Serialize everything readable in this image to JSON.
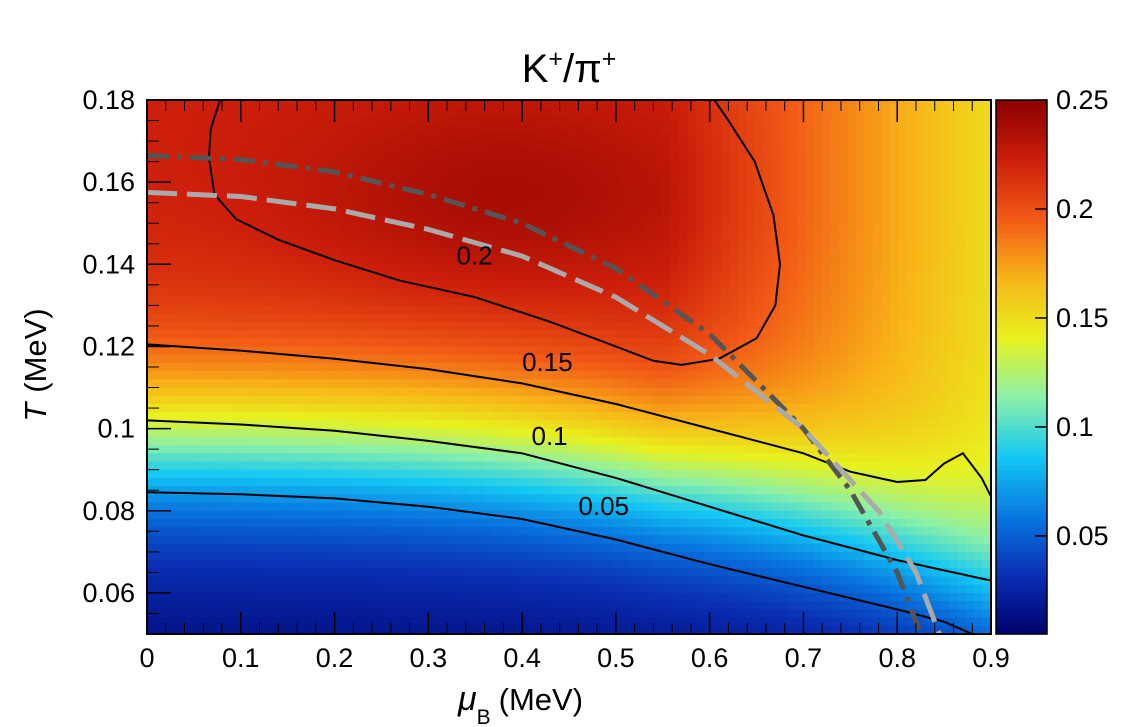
{
  "chart_data": {
    "type": "heatmap",
    "title": {
      "base": "K",
      "sup1": "+",
      "sep": "/π",
      "sup2": "+"
    },
    "xlabel": {
      "symbol": "μ",
      "sub": "B",
      "unit": "(MeV)"
    },
    "ylabel": {
      "symbol": "T",
      "unit": "(MeV)"
    },
    "xlim": [
      0,
      0.9
    ],
    "ylim": [
      0.05,
      0.18
    ],
    "zlim": [
      0.005,
      0.25
    ],
    "x_ticks": [
      {
        "v": 0,
        "label": "0"
      },
      {
        "v": 0.1,
        "label": "0.1"
      },
      {
        "v": 0.2,
        "label": "0.2"
      },
      {
        "v": 0.3,
        "label": "0.3"
      },
      {
        "v": 0.4,
        "label": "0.4"
      },
      {
        "v": 0.5,
        "label": "0.5"
      },
      {
        "v": 0.6,
        "label": "0.6"
      },
      {
        "v": 0.7,
        "label": "0.7"
      },
      {
        "v": 0.8,
        "label": "0.8"
      },
      {
        "v": 0.9,
        "label": "0.9"
      }
    ],
    "y_ticks": [
      {
        "v": 0.06,
        "label": "0.06"
      },
      {
        "v": 0.08,
        "label": "0.08"
      },
      {
        "v": 0.1,
        "label": "0.1"
      },
      {
        "v": 0.12,
        "label": "0.12"
      },
      {
        "v": 0.14,
        "label": "0.14"
      },
      {
        "v": 0.16,
        "label": "0.16"
      },
      {
        "v": 0.18,
        "label": "0.18"
      }
    ],
    "z_ticks": [
      {
        "v": 0.05,
        "label": "0.05"
      },
      {
        "v": 0.1,
        "label": "0.1"
      },
      {
        "v": 0.15,
        "label": "0.15"
      },
      {
        "v": 0.2,
        "label": "0.2"
      },
      {
        "v": 0.25,
        "label": "0.25"
      }
    ],
    "colormap": [
      "#00006e",
      "#0a2fb4",
      "#0878e0",
      "#14c8f4",
      "#8cf0a8",
      "#e8f21e",
      "#f8b418",
      "#f25a16",
      "#cc1e0a",
      "#8c0000"
    ],
    "contours": [
      {
        "level": 0.2,
        "label": "0.2",
        "label_at": [
          0.33,
          0.14
        ],
        "points": [
          [
            0.078,
            0.18
          ],
          [
            0.068,
            0.173
          ],
          [
            0.066,
            0.166
          ],
          [
            0.072,
            0.157
          ],
          [
            0.095,
            0.151
          ],
          [
            0.14,
            0.146
          ],
          [
            0.2,
            0.141
          ],
          [
            0.27,
            0.136
          ],
          [
            0.35,
            0.132
          ],
          [
            0.43,
            0.126
          ],
          [
            0.5,
            0.12
          ],
          [
            0.54,
            0.1165
          ],
          [
            0.57,
            0.1155
          ],
          [
            0.61,
            0.117
          ],
          [
            0.65,
            0.122
          ],
          [
            0.67,
            0.13
          ],
          [
            0.675,
            0.14
          ],
          [
            0.668,
            0.152
          ],
          [
            0.648,
            0.165
          ],
          [
            0.62,
            0.175
          ],
          [
            0.605,
            0.18
          ]
        ]
      },
      {
        "level": 0.15,
        "label": "0.15",
        "label_at": [
          0.4,
          0.114
        ],
        "points": [
          [
            0,
            0.1205
          ],
          [
            0.1,
            0.119
          ],
          [
            0.2,
            0.117
          ],
          [
            0.3,
            0.1145
          ],
          [
            0.4,
            0.111
          ],
          [
            0.5,
            0.106
          ],
          [
            0.6,
            0.1
          ],
          [
            0.7,
            0.094
          ],
          [
            0.75,
            0.0895
          ],
          [
            0.8,
            0.087
          ],
          [
            0.83,
            0.0875
          ],
          [
            0.85,
            0.0915
          ],
          [
            0.87,
            0.094
          ],
          [
            0.89,
            0.088
          ],
          [
            0.91,
            0.079
          ],
          [
            0.92,
            0.075
          ]
        ]
      },
      {
        "level": 0.1,
        "label": "0.1",
        "label_at": [
          0.41,
          0.096
        ],
        "points": [
          [
            0,
            0.102
          ],
          [
            0.1,
            0.101
          ],
          [
            0.2,
            0.0995
          ],
          [
            0.3,
            0.097
          ],
          [
            0.4,
            0.094
          ],
          [
            0.5,
            0.088
          ],
          [
            0.6,
            0.081
          ],
          [
            0.7,
            0.074
          ],
          [
            0.8,
            0.068
          ],
          [
            0.9,
            0.063
          ],
          [
            0.92,
            0.06
          ],
          [
            0.94,
            0.055
          ]
        ]
      },
      {
        "level": 0.05,
        "label": "0.05",
        "label_at": [
          0.46,
          0.079
        ],
        "points": [
          [
            0,
            0.0845
          ],
          [
            0.1,
            0.084
          ],
          [
            0.2,
            0.083
          ],
          [
            0.3,
            0.081
          ],
          [
            0.4,
            0.078
          ],
          [
            0.5,
            0.073
          ],
          [
            0.6,
            0.067
          ],
          [
            0.7,
            0.0615
          ],
          [
            0.8,
            0.056
          ],
          [
            0.85,
            0.053
          ],
          [
            0.88,
            0.05
          ]
        ]
      }
    ],
    "freezeout_curves": [
      {
        "style": "dash-dot",
        "color": "#555555",
        "points": [
          [
            0,
            0.1665
          ],
          [
            0.1,
            0.1655
          ],
          [
            0.2,
            0.1625
          ],
          [
            0.3,
            0.157
          ],
          [
            0.4,
            0.15
          ],
          [
            0.5,
            0.139
          ],
          [
            0.6,
            0.123
          ],
          [
            0.7,
            0.1
          ],
          [
            0.75,
            0.085
          ],
          [
            0.8,
            0.065
          ],
          [
            0.825,
            0.05
          ]
        ]
      },
      {
        "style": "dashed",
        "color": "#aaaaaa",
        "points": [
          [
            0,
            0.1575
          ],
          [
            0.1,
            0.1565
          ],
          [
            0.2,
            0.1535
          ],
          [
            0.3,
            0.1485
          ],
          [
            0.4,
            0.142
          ],
          [
            0.5,
            0.132
          ],
          [
            0.6,
            0.118
          ],
          [
            0.7,
            0.1
          ],
          [
            0.78,
            0.08
          ],
          [
            0.82,
            0.065
          ],
          [
            0.845,
            0.05
          ]
        ]
      }
    ]
  }
}
